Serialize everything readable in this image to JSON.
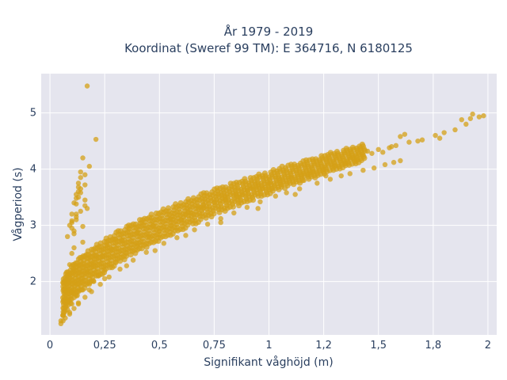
{
  "chart_data": {
    "type": "scatter",
    "title_line1": "År 1979 - 2019",
    "title_line2": "Koordinat (Sweref 99 TM): E 364716, N 6180125",
    "xlabel": "Signifikant våghöjd (m)",
    "ylabel": "Vågperiod (s)",
    "xlim": [
      -0.04,
      2.04
    ],
    "ylim": [
      1.05,
      5.7
    ],
    "x_ticks": [
      0,
      0.25,
      0.5,
      0.75,
      1,
      1.25,
      1.5,
      1.75,
      2
    ],
    "x_tick_labels": [
      "0",
      "0,25",
      "0,5",
      "0,75",
      "1",
      "1,2",
      "1,5",
      "1,8",
      "2"
    ],
    "y_ticks": [
      2,
      3,
      4,
      5
    ],
    "y_tick_labels": [
      "2",
      "3",
      "4",
      "5"
    ],
    "grid": true,
    "marker_color": "#D4A017",
    "plot_bg": "#E5E5EE",
    "points_x": [
      0.17,
      0.21,
      0.15,
      0.18,
      0.14,
      0.16,
      0.13,
      0.12,
      0.11,
      0.16,
      0.14,
      0.12,
      0.1,
      0.15,
      0.13,
      0.17,
      0.12,
      0.11,
      0.1,
      0.14,
      0.09,
      0.12,
      0.13,
      0.16,
      0.08,
      0.1,
      0.11,
      0.14,
      0.12,
      0.1,
      0.09,
      0.11,
      0.13,
      0.15,
      0.12,
      0.1,
      0.14,
      0.11,
      0.16,
      0.13,
      1.98,
      1.96,
      1.92,
      1.93,
      1.88,
      1.9,
      1.85,
      1.8,
      1.78,
      1.76,
      1.68,
      1.7,
      1.64,
      1.58,
      1.6,
      1.55,
      1.52,
      1.5,
      1.56,
      1.62,
      1.45,
      1.42,
      1.47,
      1.38,
      1.35,
      1.4,
      1.3,
      1.25,
      1.2,
      1.15,
      1.1,
      1.18,
      1.05,
      1.0,
      0.95,
      0.9,
      0.92,
      0.85,
      0.8,
      0.75,
      0.7,
      0.65,
      0.62,
      0.6,
      0.55,
      0.5,
      0.45,
      0.4,
      0.35,
      0.3,
      0.25,
      0.22,
      0.2,
      0.18,
      0.15,
      0.12,
      0.1,
      0.08,
      0.06,
      0.05,
      0.07,
      0.09,
      0.11,
      0.13,
      0.16,
      0.19,
      0.23,
      0.27,
      0.32,
      0.38,
      0.44,
      0.52,
      0.58,
      0.66,
      0.72,
      0.78,
      0.84,
      0.9,
      0.96,
      1.03,
      1.08,
      1.14,
      1.22,
      1.28,
      1.33,
      1.37,
      1.43,
      1.48,
      1.53,
      1.57,
      1.6,
      0.05,
      0.06,
      0.07,
      0.08,
      0.1,
      0.12,
      0.14,
      0.17,
      0.2,
      0.24,
      0.28,
      0.33,
      0.4,
      0.47,
      0.55,
      0.63,
      0.7,
      0.8,
      0.88,
      0.97,
      1.06,
      1.16,
      1.26,
      0.06,
      0.09,
      0.13,
      0.18,
      0.25,
      0.35,
      0.48,
      0.62,
      0.78,
      0.95,
      1.12,
      0.36,
      0.42,
      0.57,
      0.68,
      0.86,
      1.01,
      0.3,
      0.26,
      0.21,
      0.19
    ],
    "points_y": [
      5.48,
      4.53,
      4.2,
      4.05,
      3.95,
      3.72,
      3.6,
      3.48,
      3.4,
      3.35,
      3.25,
      3.15,
      3.05,
      2.98,
      3.5,
      3.3,
      3.1,
      2.9,
      3.2,
      3.65,
      3.0,
      3.55,
      3.75,
      3.45,
      2.8,
      2.95,
      2.6,
      3.85,
      3.2,
      2.5,
      2.3,
      2.2,
      2.4,
      2.7,
      3.38,
      3.08,
      3.58,
      2.85,
      3.9,
      3.68,
      4.95,
      4.93,
      4.9,
      4.98,
      4.88,
      4.8,
      4.7,
      4.65,
      4.55,
      4.6,
      4.5,
      4.52,
      4.48,
      4.42,
      4.58,
      4.38,
      4.3,
      4.35,
      4.4,
      4.62,
      4.32,
      4.25,
      4.28,
      4.2,
      4.1,
      4.15,
      4.05,
      4.0,
      3.95,
      3.9,
      3.85,
      3.92,
      3.8,
      3.75,
      3.7,
      3.62,
      3.66,
      3.55,
      3.5,
      3.4,
      3.3,
      3.22,
      3.18,
      3.1,
      3.0,
      2.9,
      2.8,
      2.65,
      2.5,
      2.35,
      2.2,
      2.1,
      2.0,
      1.95,
      1.85,
      1.75,
      1.6,
      1.5,
      1.4,
      1.3,
      1.35,
      1.42,
      1.52,
      1.62,
      1.72,
      1.82,
      1.95,
      2.08,
      2.22,
      2.38,
      2.52,
      2.68,
      2.78,
      2.92,
      3.02,
      3.12,
      3.22,
      3.32,
      3.42,
      3.52,
      3.58,
      3.65,
      3.75,
      3.82,
      3.88,
      3.92,
      3.98,
      4.02,
      4.08,
      4.12,
      4.15,
      1.25,
      1.4,
      1.55,
      1.65,
      1.8,
      1.95,
      2.05,
      2.18,
      2.3,
      2.45,
      2.58,
      2.72,
      2.88,
      3.0,
      3.12,
      3.25,
      3.35,
      3.45,
      3.55,
      3.65,
      3.72,
      3.8,
      3.88,
      1.3,
      1.45,
      1.6,
      1.85,
      2.05,
      2.28,
      2.55,
      2.82,
      3.05,
      3.3,
      3.55,
      2.95,
      3.05,
      3.15,
      3.32,
      3.5,
      3.65,
      2.75,
      2.65,
      2.45,
      2.25
    ]
  }
}
